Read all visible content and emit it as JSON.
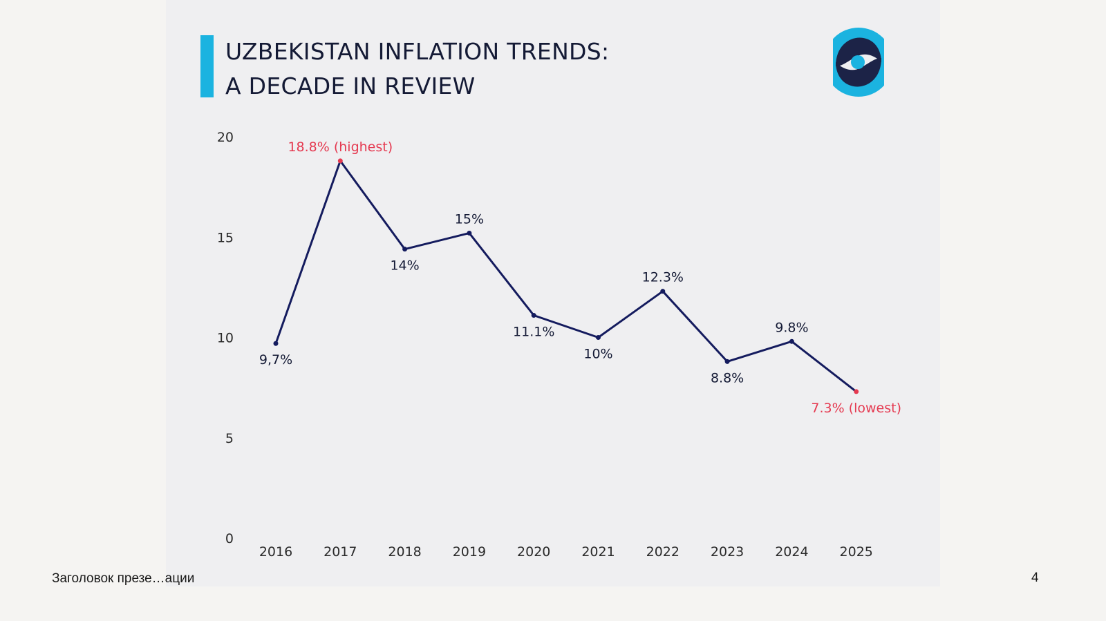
{
  "slide": {
    "title_line1": "UZBEKISTAN INFLATION TRENDS:",
    "title_line2": "A DECADE IN REVIEW",
    "footer_text": "Заголовок презе…ации",
    "page_number": "4"
  },
  "colors": {
    "accent": "#1bb3e0",
    "navy": "#141b5e",
    "highlight": "#e53950",
    "text": "#141a35"
  },
  "chart_data": {
    "type": "line",
    "title": "",
    "xlabel": "",
    "ylabel": "",
    "categories": [
      "2016",
      "2017",
      "2018",
      "2019",
      "2020",
      "2021",
      "2022",
      "2023",
      "2024",
      "2025"
    ],
    "series": [
      {
        "values": [
          9.7,
          18.8,
          14.4,
          15.2,
          11.1,
          10.0,
          12.3,
          8.8,
          9.8,
          7.3
        ]
      }
    ],
    "data_labels": [
      "9,7%",
      "18.8% (highest)",
      "14%",
      "15%",
      "11.1%",
      "10%",
      "12.3%",
      "8.8%",
      "9.8%",
      "7.3% (lowest)"
    ],
    "highlighted_points": [
      1,
      9
    ],
    "ylim": [
      0,
      20
    ],
    "yticks": [
      "0",
      "5",
      "10",
      "15",
      "20"
    ],
    "grid": false,
    "legend": "none"
  }
}
